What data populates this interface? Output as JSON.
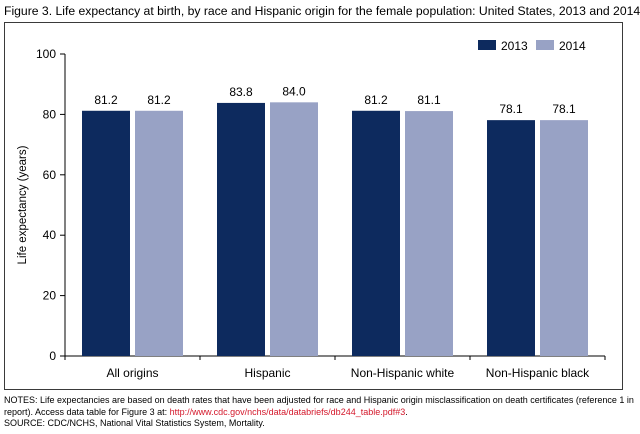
{
  "title": "Figure 3. Life expectancy at birth, by race and Hispanic origin for the female population: United States, 2013 and 2014",
  "colors": {
    "s2013": "#0d2a5e",
    "s2014": "#98a2c5"
  },
  "chart_data": {
    "type": "bar",
    "categories": [
      "All origins",
      "Hispanic",
      "Non-Hispanic white",
      "Non-Hispanic black"
    ],
    "series": [
      {
        "name": "2013",
        "values": [
          81.2,
          83.8,
          81.2,
          78.1
        ],
        "labels": [
          "81.2",
          "83.8",
          "81.2",
          "78.1"
        ]
      },
      {
        "name": "2014",
        "values": [
          81.2,
          84.0,
          81.1,
          78.1
        ],
        "labels": [
          "81.2",
          "84.0",
          "81.1",
          "78.1"
        ]
      }
    ],
    "ylabel": "Life expectancy (years)",
    "ylim": [
      0,
      100
    ],
    "yticks": [
      0,
      20,
      40,
      60,
      80,
      100
    ],
    "legend": "top-right",
    "grid": false
  },
  "notes": {
    "line1": "NOTES: Life expectancies are based on death rates that have been adjusted for race and Hispanic origin misclassification on death certificates (reference 1 in",
    "line2_prefix": "report). Access data table for Figure 3 at: ",
    "link": "http://www.cdc.gov/nchs/data/databriefs/db244_table.pdf#3",
    "line2_suffix": ".",
    "source": "SOURCE: CDC/NCHS, National Vital Statistics System, Mortality."
  }
}
